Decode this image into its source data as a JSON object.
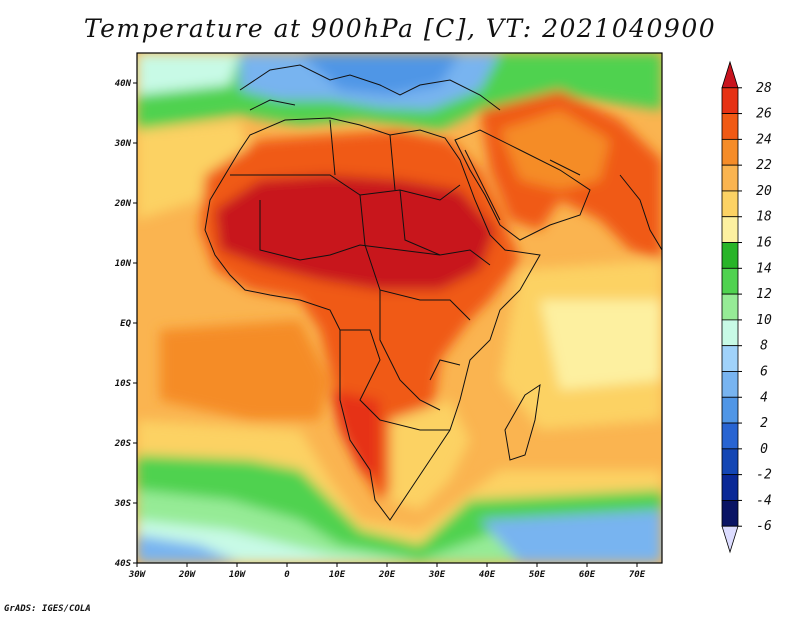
{
  "title": "Temperature at 900hPa [C], VT: 2021040900",
  "credit": "GrADS: IGES/COLA",
  "map": {
    "projection": "latlon",
    "lon_range": [
      -30,
      75
    ],
    "lat_range": [
      -40,
      45
    ],
    "lat_labels": [
      "40N",
      "30N",
      "20N",
      "10N",
      "EQ",
      "10S",
      "20S",
      "30S",
      "40S"
    ],
    "lat_values": [
      40,
      30,
      20,
      10,
      0,
      -10,
      -20,
      -30,
      -40
    ],
    "lon_labels": [
      "30W",
      "20W",
      "10W",
      "0",
      "10E",
      "20E",
      "30E",
      "40E",
      "50E",
      "60E",
      "70E"
    ],
    "lon_values": [
      -30,
      -20,
      -10,
      0,
      10,
      20,
      30,
      40,
      50,
      60,
      70
    ]
  },
  "colorbar": {
    "labels": [
      "28",
      "26",
      "24",
      "22",
      "20",
      "18",
      "16",
      "14",
      "12",
      "10",
      "8",
      "6",
      "4",
      "2",
      "0",
      "-2",
      "-4",
      "-6"
    ],
    "colors": [
      "#c8141e",
      "#e63214",
      "#f05a14",
      "#f58c28",
      "#fab450",
      "#fcd264",
      "#fdf0a0",
      "#28b428",
      "#50d250",
      "#96eb96",
      "#c8fae6",
      "#a0d2fa",
      "#78b4f0",
      "#5096e6",
      "#2864d2",
      "#1446b4",
      "#0a2896",
      "#0a1464",
      "#dcdcff"
    ]
  }
}
